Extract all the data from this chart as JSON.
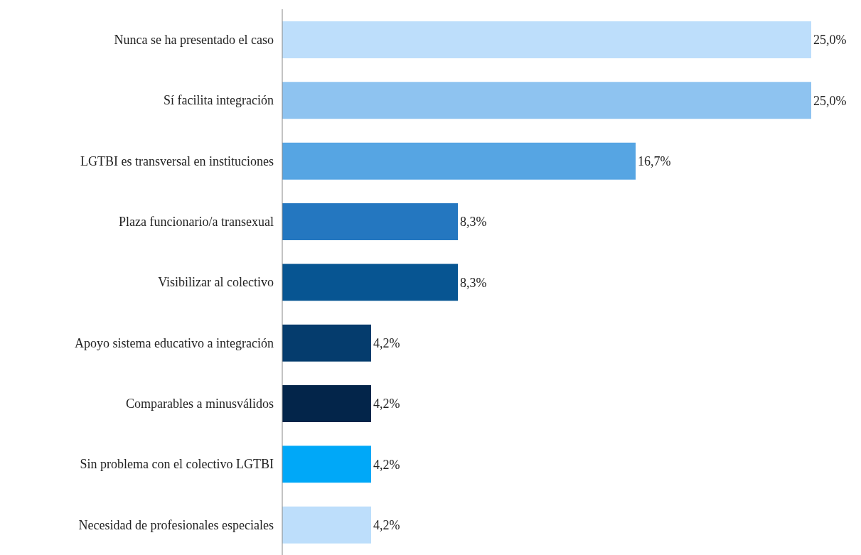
{
  "chart_data": {
    "type": "bar",
    "orientation": "horizontal",
    "categories": [
      "Nunca se ha presentado el caso",
      "Sí facilita integración",
      "LGTBI es transversal en instituciones",
      "Plaza funcionario/a transexual",
      "Visibilizar al colectivo",
      "Apoyo sistema educativo a integración",
      "Comparables a minusválidos",
      "Sin problema con el colectivo LGTBI",
      "Necesidad de profesionales especiales"
    ],
    "values": [
      25.0,
      25.0,
      16.7,
      8.3,
      8.3,
      4.2,
      4.2,
      4.2,
      4.2
    ],
    "colors": [
      "#bddefb",
      "#8ec3f0",
      "#56a5e3",
      "#2477c0",
      "#075592",
      "#053c6d",
      "#03254a",
      "#00a8f8",
      "#bddefb"
    ],
    "value_labels": [
      "25,0%",
      "25,0%",
      "16,7%",
      "8,3%",
      "8,3%",
      "4,2%",
      "4,2%",
      "4,2%",
      "4,2%"
    ],
    "grid": false,
    "legend": false
  }
}
